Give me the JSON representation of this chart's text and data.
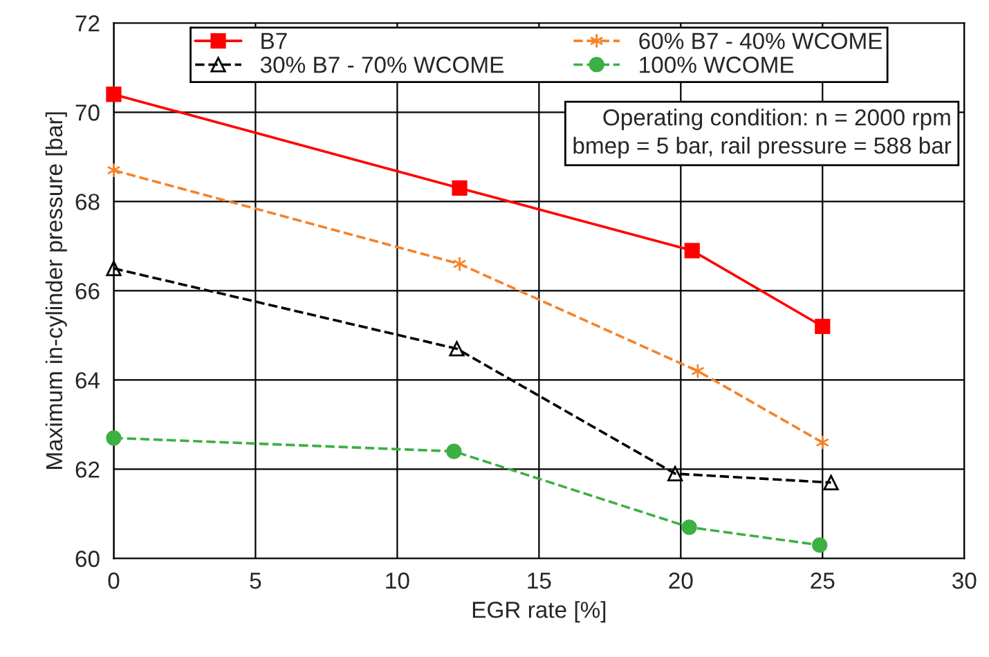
{
  "chart_data": {
    "type": "line",
    "xlabel": "EGR rate [%]",
    "ylabel": "Maximum in-cylinder pressure [bar]",
    "xlim": [
      0,
      30
    ],
    "xticks": [
      0,
      5,
      10,
      15,
      20,
      25,
      30
    ],
    "ylim": [
      60,
      72
    ],
    "yticks": [
      60,
      62,
      64,
      66,
      68,
      70,
      72
    ],
    "grid": true,
    "legend": "top",
    "annotations": [
      "Operating condition: n = 2000 rpm\nbmep = 5 bar, rail pressure = 588 bar"
    ],
    "series": [
      {
        "name": "B7",
        "color": "#ff0000",
        "marker": "square",
        "line_style": "solid",
        "x": [
          0,
          12.2,
          20.4,
          25.0
        ],
        "values": [
          70.4,
          68.3,
          66.9,
          65.2
        ]
      },
      {
        "name": "60% B7 - 40% WCOME",
        "color": "#f5822a",
        "marker": "cross",
        "line_style": "dashed",
        "x": [
          0,
          12.2,
          20.6,
          25.0
        ],
        "values": [
          68.7,
          66.6,
          64.2,
          62.6
        ]
      },
      {
        "name": "30% B7 - 70% WCOME",
        "color": "#000000",
        "marker": "triangle",
        "line_style": "dashed",
        "x": [
          0,
          12.1,
          19.8,
          25.3
        ],
        "values": [
          66.5,
          64.7,
          61.9,
          61.7
        ]
      },
      {
        "name": "100% WCOME",
        "color": "#3cb043",
        "marker": "circle",
        "line_style": "dashed",
        "x": [
          0,
          12.0,
          20.3,
          24.9
        ],
        "values": [
          62.7,
          62.4,
          60.7,
          60.3
        ]
      }
    ]
  }
}
